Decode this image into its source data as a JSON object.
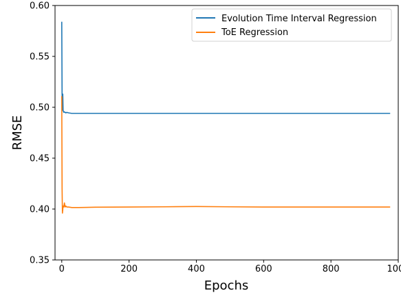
{
  "chart_data": {
    "type": "line",
    "title": "",
    "xlabel": "Epochs",
    "ylabel": "RMSE",
    "xlim": [
      -20,
      1000
    ],
    "ylim": [
      0.35,
      0.6
    ],
    "xticks": [
      0,
      200,
      400,
      600,
      800,
      1000
    ],
    "yticks": [
      0.35,
      0.4,
      0.45,
      0.5,
      0.55,
      0.6
    ],
    "xtick_labels": [
      "0",
      "200",
      "400",
      "600",
      "800",
      "1000"
    ],
    "ytick_labels": [
      "0.35",
      "0.40",
      "0.45",
      "0.50",
      "0.55",
      "0.60"
    ],
    "grid": false,
    "legend_position": "top-right",
    "series": [
      {
        "name": "Evolution Time Interval Regression",
        "color": "#1f77b4",
        "x": [
          0,
          1,
          2,
          3,
          4,
          5,
          6,
          8,
          10,
          12,
          15,
          20,
          30,
          50,
          100,
          200,
          300,
          400,
          500,
          600,
          700,
          800,
          900,
          976
        ],
        "y": [
          0.584,
          0.512,
          0.497,
          0.513,
          0.497,
          0.496,
          0.495,
          0.4955,
          0.495,
          0.4945,
          0.495,
          0.4945,
          0.494,
          0.494,
          0.494,
          0.494,
          0.494,
          0.494,
          0.494,
          0.494,
          0.494,
          0.494,
          0.494,
          0.494
        ]
      },
      {
        "name": "ToE Regression",
        "color": "#ff7f0e",
        "x": [
          0,
          1,
          2,
          3,
          4,
          6,
          8,
          10,
          12,
          15,
          20,
          30,
          50,
          100,
          200,
          300,
          400,
          500,
          600,
          700,
          800,
          900,
          976
        ],
        "y": [
          0.511,
          0.42,
          0.396,
          0.399,
          0.403,
          0.402,
          0.406,
          0.402,
          0.403,
          0.402,
          0.402,
          0.4015,
          0.4015,
          0.4018,
          0.402,
          0.4022,
          0.4025,
          0.4022,
          0.402,
          0.402,
          0.402,
          0.402,
          0.402
        ]
      }
    ]
  }
}
